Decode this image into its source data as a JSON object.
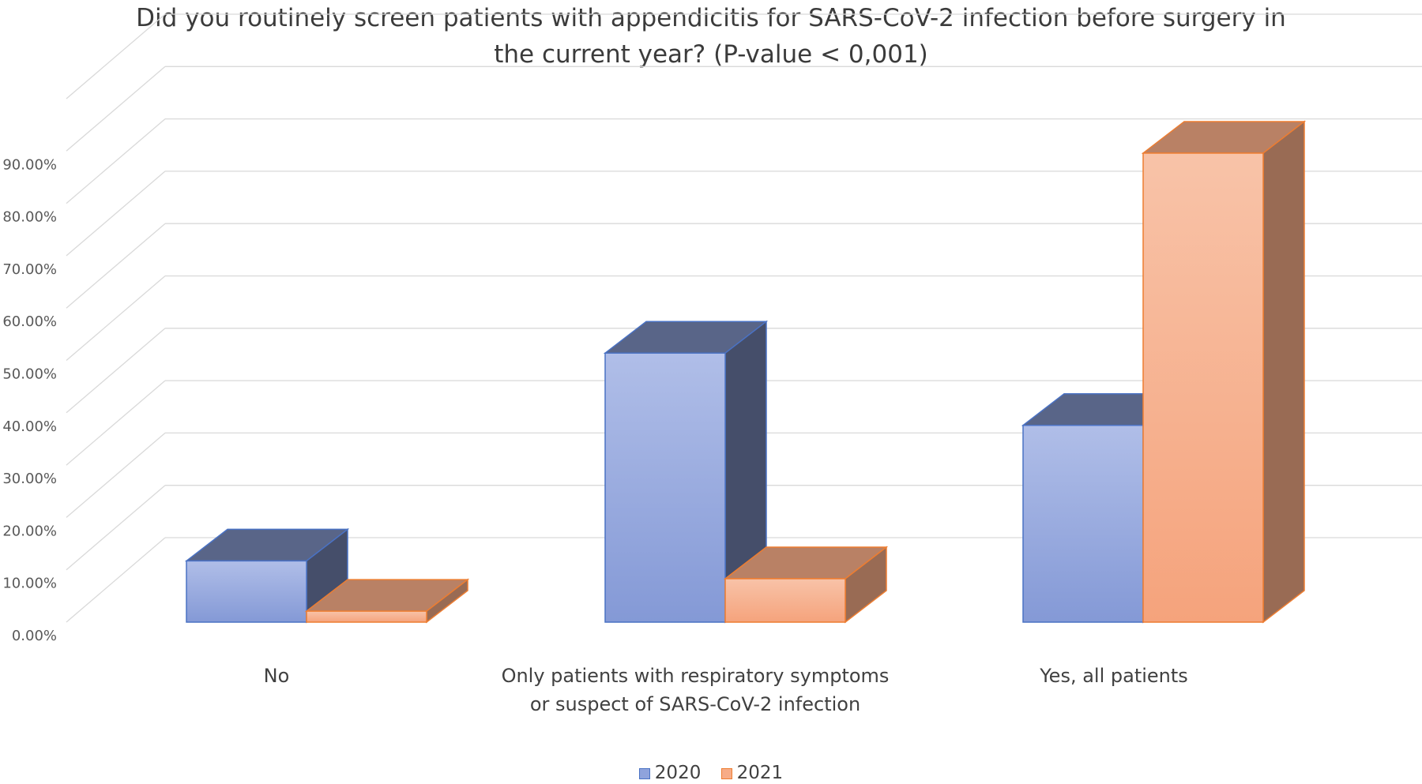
{
  "chart_data": {
    "type": "bar",
    "title": "Did you routinely screen patients with appendicitis for SARS-CoV-2 infection before surgery in the current year? (P-value < 0,001)",
    "title_lines": [
      "Did you routinely screen patients with appendicitis for SARS-CoV-2 infection before surgery in",
      "the current year? (P-value < 0,001)"
    ],
    "categories": [
      "No",
      "Only patients with respiratory symptoms or suspect of SARS-CoV-2 infection",
      "Yes, all patients"
    ],
    "series": [
      {
        "name": "2020",
        "values": [
          11.7,
          51.4,
          37.6
        ],
        "color": "#8fa3dc",
        "edge": "#4a72c4"
      },
      {
        "name": "2021",
        "values": [
          2.1,
          8.3,
          89.6
        ],
        "color": "#f7ac87",
        "edge": "#ed7d31"
      }
    ],
    "ylim": [
      0,
      100
    ],
    "yticks": [
      "0.00%",
      "10.00%",
      "20.00%",
      "30.00%",
      "40.00%",
      "50.00%",
      "60.00%",
      "70.00%",
      "80.00%",
      "90.00%"
    ],
    "gridlines": true,
    "legend_position": "bottom",
    "render_3d": true
  }
}
